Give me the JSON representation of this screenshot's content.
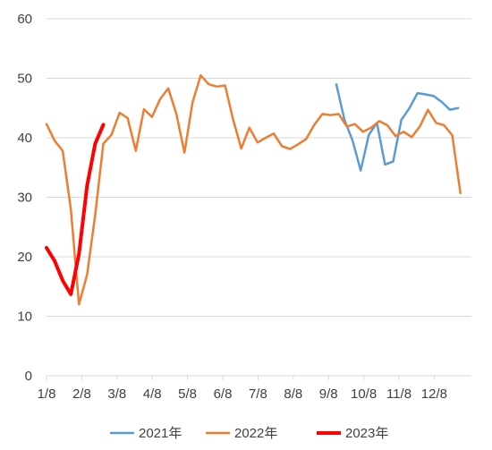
{
  "chart_data": {
    "type": "line",
    "ylim": [
      0,
      60
    ],
    "yticks": [
      0,
      10,
      20,
      30,
      40,
      50,
      60
    ],
    "xticks": [
      "1/8",
      "2/8",
      "3/8",
      "4/8",
      "5/8",
      "6/8",
      "7/8",
      "8/8",
      "9/8",
      "10/8",
      "11/8",
      "12/8"
    ],
    "grid": "horizontal",
    "legend_position": "bottom",
    "series": [
      {
        "name": "2021年",
        "color": "#5b9bd5",
        "x": [
          "9/15",
          "9/22",
          "9/29",
          "10/6",
          "10/13",
          "10/20",
          "10/27",
          "11/3",
          "11/10",
          "11/17",
          "11/24",
          "12/1",
          "12/8",
          "12/15",
          "12/22",
          "12/29"
        ],
        "values": [
          49,
          43,
          39.5,
          34.5,
          40.5,
          42.5,
          35.5,
          36,
          43,
          45,
          47.5,
          47.3,
          47,
          46,
          44.7,
          45
        ]
      },
      {
        "name": "2022年",
        "color": "#ed7d31",
        "x": [
          "1/8",
          "1/15",
          "1/22",
          "1/29",
          "2/5",
          "2/12",
          "2/19",
          "2/26",
          "3/5",
          "3/12",
          "3/19",
          "3/26",
          "4/2",
          "4/9",
          "4/16",
          "4/23",
          "4/30",
          "5/7",
          "5/14",
          "5/21",
          "5/28",
          "6/4",
          "6/11",
          "6/18",
          "6/25",
          "7/2",
          "7/9",
          "7/16",
          "7/23",
          "7/30",
          "8/6",
          "8/13",
          "8/20",
          "8/27",
          "9/3",
          "9/10",
          "9/17",
          "9/24",
          "10/1",
          "10/8",
          "10/15",
          "10/22",
          "10/29",
          "11/5",
          "11/12",
          "11/19",
          "11/26",
          "12/3",
          "12/10",
          "12/17",
          "12/24",
          "12/31"
        ],
        "values": [
          42.3,
          39.5,
          37.8,
          28,
          12,
          17,
          27,
          39,
          40.5,
          44.2,
          43.3,
          37.8,
          44.8,
          43.5,
          46.5,
          48.3,
          44,
          37.5,
          46,
          50.5,
          49,
          48.6,
          48.8,
          43,
          38.2,
          41.7,
          39.2,
          40,
          40.7,
          38.6,
          38.1,
          38.9,
          39.8,
          42.2,
          44,
          43.8,
          44,
          41.9,
          42.3,
          41,
          41.7,
          42.8,
          42.1,
          40.3,
          41,
          40.1,
          41.9,
          44.7,
          42.5,
          42.1,
          40.4,
          30.7
        ]
      },
      {
        "name": "2023年",
        "color": "#ff0000",
        "x": [
          "1/8",
          "1/15",
          "1/22",
          "1/29",
          "2/5",
          "2/12",
          "2/19",
          "2/26"
        ],
        "values": [
          21.5,
          19.3,
          16,
          13.7,
          20.5,
          32,
          39,
          42.2
        ]
      }
    ]
  }
}
